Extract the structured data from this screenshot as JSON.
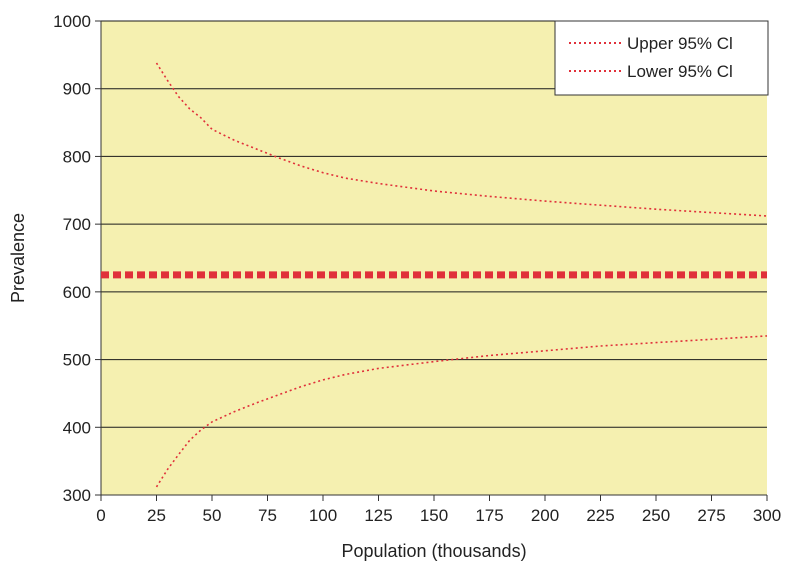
{
  "chart_data": {
    "type": "line",
    "title": "",
    "xlabel": "Population (thousands)",
    "ylabel": "Prevalence",
    "xlim": [
      0,
      300
    ],
    "ylim": [
      300,
      1000
    ],
    "xticks": [
      0,
      25,
      50,
      75,
      100,
      125,
      150,
      175,
      200,
      225,
      250,
      275,
      300
    ],
    "yticks": [
      300,
      400,
      500,
      600,
      700,
      800,
      900,
      1000
    ],
    "grid": "horizontal",
    "legend_position": "top-right",
    "plot_background": "#f5f0b0",
    "series": [
      {
        "name": "Upper 95% Cl",
        "color": "#e0303a",
        "style": "dotted",
        "x": [
          25,
          30,
          35,
          40,
          45,
          50,
          60,
          70,
          80,
          90,
          100,
          110,
          125,
          150,
          175,
          200,
          225,
          250,
          275,
          300
        ],
        "y": [
          938,
          912,
          888,
          870,
          857,
          840,
          824,
          811,
          798,
          786,
          776,
          768,
          760,
          749,
          741,
          734,
          728,
          722,
          717,
          712
        ]
      },
      {
        "name": "Lower 95% Cl",
        "color": "#e0303a",
        "style": "dotted",
        "x": [
          25,
          30,
          35,
          40,
          45,
          50,
          60,
          70,
          80,
          90,
          100,
          110,
          125,
          150,
          175,
          200,
          225,
          250,
          275,
          300
        ],
        "y": [
          312,
          338,
          360,
          381,
          396,
          408,
          423,
          436,
          448,
          460,
          470,
          478,
          487,
          497,
          506,
          513,
          520,
          525,
          530,
          535
        ]
      },
      {
        "name": "",
        "color": "#e0303a",
        "style": "thick-dashed",
        "x": [
          0,
          300
        ],
        "y": [
          625,
          625
        ]
      }
    ]
  }
}
